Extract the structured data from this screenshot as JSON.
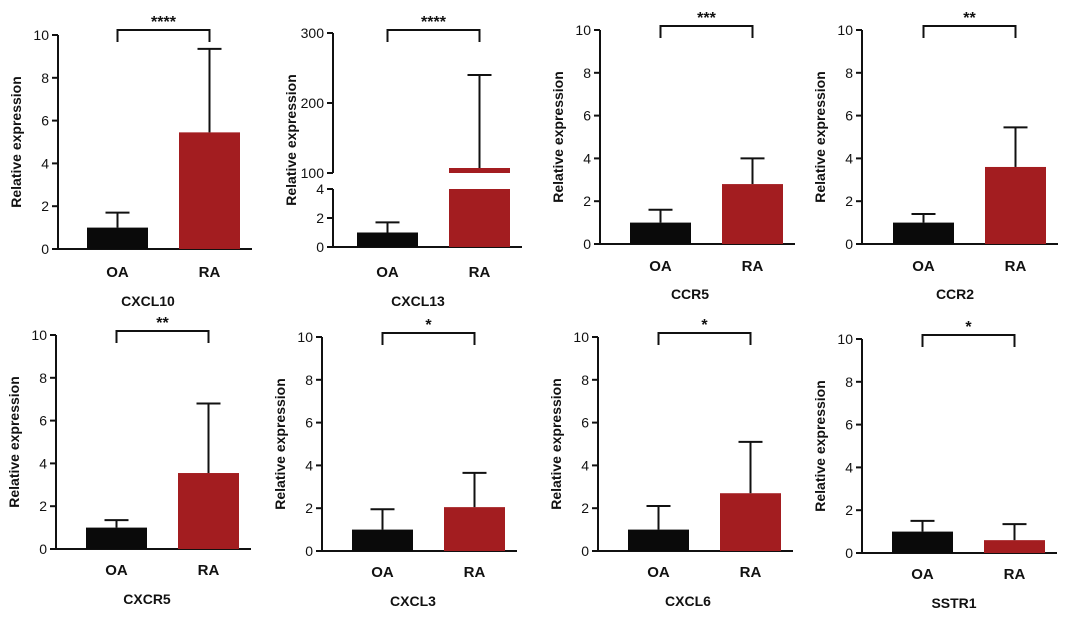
{
  "figure": {
    "background": "#ffffff"
  },
  "colors": {
    "OA": "#0a0a0a",
    "RA": "#a31d20",
    "axis": "#111111"
  },
  "chart_data": [
    {
      "type": "bar",
      "title": "CXCL10",
      "categories": [
        "OA",
        "RA"
      ],
      "values": [
        1.0,
        5.45
      ],
      "errors": [
        0.7,
        3.9
      ],
      "significance": "****",
      "ylabel": "Relative expression",
      "ylim": [
        0,
        10
      ],
      "yticks": [
        "0",
        "2",
        "4",
        "6",
        "8",
        "10"
      ]
    },
    {
      "type": "bar",
      "title": "CXCL13",
      "categories": [
        "OA",
        "RA"
      ],
      "values": [
        1.0,
        105
      ],
      "errors": [
        0.7,
        135
      ],
      "significance": "****",
      "ylabel": "Relative expression",
      "ylim": [
        0,
        300
      ],
      "axis_break": [
        4,
        100
      ],
      "yticks": [
        "0",
        "2",
        "4",
        "100",
        "200",
        "300"
      ]
    },
    {
      "type": "bar",
      "title": "CCR5",
      "categories": [
        "OA",
        "RA"
      ],
      "values": [
        1.0,
        2.8
      ],
      "errors": [
        0.6,
        1.2
      ],
      "significance": "***",
      "ylabel": "Relative expression",
      "ylim": [
        0,
        10
      ],
      "yticks": [
        "0",
        "2",
        "4",
        "6",
        "8",
        "10"
      ]
    },
    {
      "type": "bar",
      "title": "CCR2",
      "categories": [
        "OA",
        "RA"
      ],
      "values": [
        1.0,
        3.6
      ],
      "errors": [
        0.4,
        1.85
      ],
      "significance": "**",
      "ylabel": "Relative expression",
      "ylim": [
        0,
        10
      ],
      "yticks": [
        "0",
        "2",
        "4",
        "6",
        "8",
        "10"
      ]
    },
    {
      "type": "bar",
      "title": "CXCR5",
      "categories": [
        "OA",
        "RA"
      ],
      "values": [
        1.0,
        3.55
      ],
      "errors": [
        0.35,
        3.25
      ],
      "significance": "**",
      "ylabel": "Relative expression",
      "ylim": [
        0,
        10
      ],
      "yticks": [
        "0",
        "2",
        "4",
        "6",
        "8",
        "10"
      ]
    },
    {
      "type": "bar",
      "title": "CXCL3",
      "categories": [
        "OA",
        "RA"
      ],
      "values": [
        1.0,
        2.05
      ],
      "errors": [
        0.95,
        1.6
      ],
      "significance": "*",
      "ylabel": "Relative expression",
      "ylim": [
        0,
        10
      ],
      "yticks": [
        "0",
        "2",
        "4",
        "6",
        "8",
        "10"
      ]
    },
    {
      "type": "bar",
      "title": "CXCL6",
      "categories": [
        "OA",
        "RA"
      ],
      "values": [
        1.0,
        2.7
      ],
      "errors": [
        1.1,
        2.4
      ],
      "significance": "*",
      "ylabel": "Relative expression",
      "ylim": [
        0,
        10
      ],
      "yticks": [
        "0",
        "2",
        "4",
        "6",
        "8",
        "10"
      ]
    },
    {
      "type": "bar",
      "title": "SSTR1",
      "categories": [
        "OA",
        "RA"
      ],
      "values": [
        1.0,
        0.6
      ],
      "errors": [
        0.5,
        0.75
      ],
      "significance": "*",
      "ylabel": "Relative expression",
      "ylim": [
        0,
        10
      ],
      "yticks": [
        "0",
        "2",
        "4",
        "6",
        "8",
        "10"
      ]
    }
  ]
}
